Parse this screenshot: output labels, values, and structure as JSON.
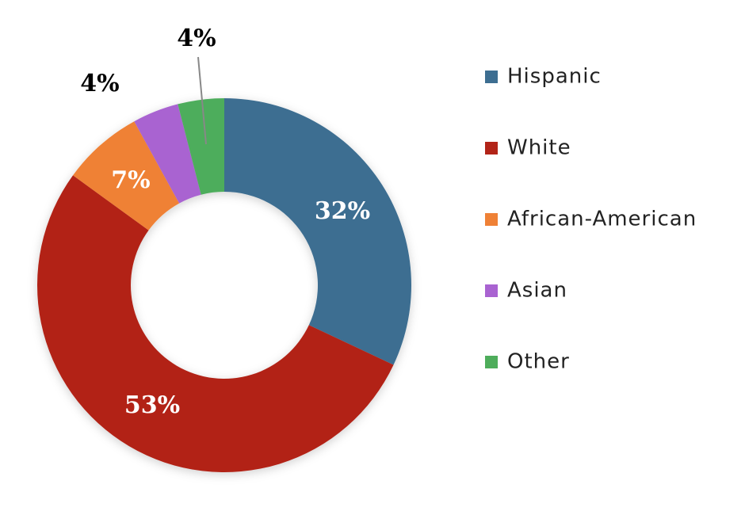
{
  "chart_data": {
    "type": "donut",
    "categories": [
      "Hispanic",
      "White",
      "African-American",
      "Asian",
      "Other"
    ],
    "values": [
      32,
      53,
      7,
      4,
      4
    ],
    "value_labels": [
      "32%",
      "53%",
      "7%",
      "4%",
      "4%"
    ],
    "colors": [
      "#3d6e91",
      "#b22418",
      "#ef8136",
      "#a963d1",
      "#4ead5b"
    ],
    "legend": "right"
  }
}
